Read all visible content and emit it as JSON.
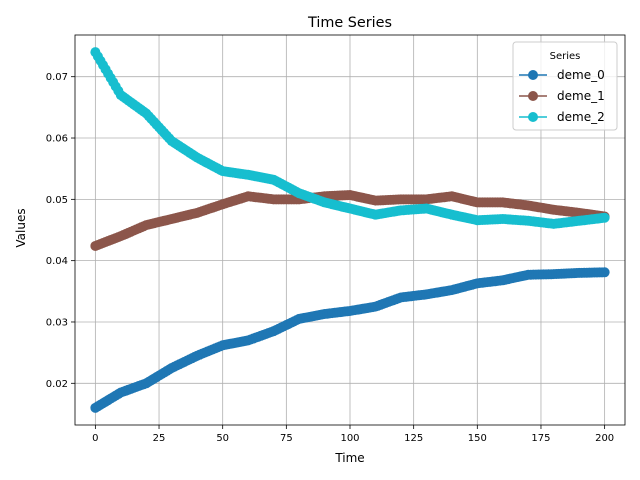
{
  "chart_data": {
    "type": "line",
    "title": "Time Series",
    "xlabel": "Time",
    "ylabel": "Values",
    "xlim": [
      -8,
      208
    ],
    "ylim": [
      0.0132,
      0.0768
    ],
    "xticks": [
      0,
      25,
      50,
      75,
      100,
      125,
      150,
      175,
      200
    ],
    "xtick_labels": [
      "0",
      "25",
      "50",
      "75",
      "100",
      "125",
      "150",
      "175",
      "200"
    ],
    "yticks": [
      0.02,
      0.03,
      0.04,
      0.05,
      0.06,
      0.07
    ],
    "ytick_labels": [
      "0.02",
      "0.03",
      "0.04",
      "0.05",
      "0.06",
      "0.07"
    ],
    "grid": true,
    "legend": {
      "title": "Series",
      "position": "top-right"
    },
    "x": [
      0,
      10,
      20,
      30,
      40,
      50,
      60,
      70,
      80,
      90,
      100,
      110,
      120,
      130,
      140,
      150,
      160,
      170,
      180,
      190,
      200
    ],
    "series": [
      {
        "name": "deme_0",
        "color": "#1f77b4",
        "values": [
          0.016,
          0.0185,
          0.02,
          0.0225,
          0.0245,
          0.0262,
          0.027,
          0.0285,
          0.0305,
          0.0313,
          0.0318,
          0.0325,
          0.034,
          0.0345,
          0.0352,
          0.0363,
          0.0368,
          0.0377,
          0.0378,
          0.038,
          0.0381
        ]
      },
      {
        "name": "deme_1",
        "color": "#8c564b",
        "values": [
          0.0424,
          0.044,
          0.0458,
          0.0468,
          0.0478,
          0.0492,
          0.0505,
          0.05,
          0.05,
          0.0505,
          0.0507,
          0.0498,
          0.05,
          0.05,
          0.0505,
          0.0495,
          0.0495,
          0.049,
          0.0483,
          0.0478,
          0.0472
        ]
      },
      {
        "name": "deme_2",
        "color": "#17becf",
        "values": [
          0.074,
          0.067,
          0.064,
          0.0595,
          0.0568,
          0.0546,
          0.054,
          0.0532,
          0.051,
          0.0495,
          0.0485,
          0.0475,
          0.0482,
          0.0485,
          0.0475,
          0.0466,
          0.0468,
          0.0465,
          0.046,
          0.0465,
          0.047
        ]
      }
    ]
  }
}
